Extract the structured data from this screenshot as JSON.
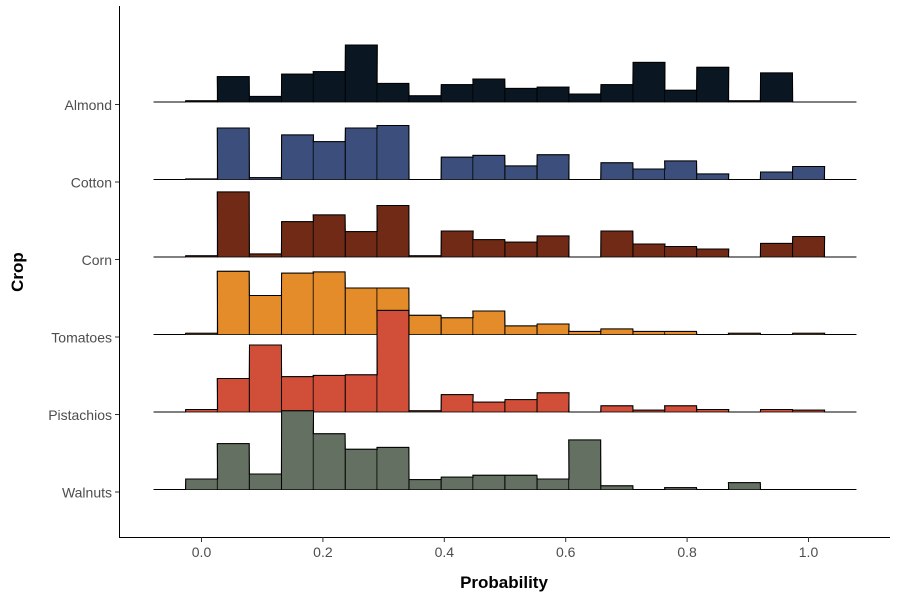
{
  "chart_data": {
    "type": "ridgeline-histogram",
    "xlabel": "Probability",
    "ylabel": "Crop",
    "xlim": [
      -0.14,
      1.13
    ],
    "x_ticks": [
      "0.0",
      "0.2",
      "0.4",
      "0.6",
      "0.8",
      "1.0"
    ],
    "bin_width": 0.0526,
    "bin_starts": [
      -0.079,
      -0.026,
      0.026,
      0.079,
      0.132,
      0.184,
      0.237,
      0.289,
      0.342,
      0.395,
      0.447,
      0.5,
      0.553,
      0.605,
      0.658,
      0.711,
      0.763,
      0.816,
      0.868,
      0.921,
      0.974,
      1.026
    ],
    "grid": false,
    "legend": "none",
    "series": [
      {
        "name": "Almond",
        "color": "#0a1722",
        "values": [
          0.0,
          0.02,
          0.41,
          0.09,
          0.45,
          0.49,
          0.92,
          0.3,
          0.1,
          0.28,
          0.37,
          0.22,
          0.24,
          0.13,
          0.28,
          0.64,
          0.19,
          0.56,
          0.02,
          0.47,
          0.0,
          0.0
        ]
      },
      {
        "name": "Cotton",
        "color": "#3c4f7c",
        "values": [
          0.0,
          0.01,
          0.83,
          0.03,
          0.72,
          0.61,
          0.83,
          0.87,
          0.0,
          0.36,
          0.39,
          0.22,
          0.4,
          0.0,
          0.27,
          0.17,
          0.3,
          0.09,
          0.0,
          0.12,
          0.21,
          0.0
        ]
      },
      {
        "name": "Corn",
        "color": "#712a16",
        "values": [
          0.0,
          0.02,
          1.05,
          0.05,
          0.57,
          0.68,
          0.41,
          0.83,
          0.02,
          0.42,
          0.28,
          0.24,
          0.34,
          0.0,
          0.42,
          0.21,
          0.17,
          0.13,
          0.0,
          0.22,
          0.33,
          0.0
        ]
      },
      {
        "name": "Tomatoes",
        "color": "#e48c2a",
        "values": [
          0.0,
          0.02,
          1.02,
          0.63,
          0.99,
          1.01,
          0.75,
          0.75,
          0.31,
          0.27,
          0.38,
          0.14,
          0.17,
          0.05,
          0.09,
          0.05,
          0.05,
          0.0,
          0.02,
          0.0,
          0.02,
          0.0
        ]
      },
      {
        "name": "Pistachios",
        "color": "#d14f38",
        "values": [
          0.0,
          0.04,
          0.54,
          1.08,
          0.57,
          0.59,
          0.6,
          1.64,
          0.02,
          0.28,
          0.16,
          0.2,
          0.31,
          0.0,
          0.1,
          0.03,
          0.1,
          0.04,
          0.0,
          0.04,
          0.03,
          0.0
        ]
      },
      {
        "name": "Walnuts",
        "color": "#647061",
        "values": [
          0.0,
          0.17,
          0.74,
          0.25,
          1.27,
          0.9,
          0.65,
          0.68,
          0.16,
          0.2,
          0.23,
          0.23,
          0.17,
          0.8,
          0.06,
          0.0,
          0.03,
          0.0,
          0.11,
          0.0,
          0.0,
          0.0
        ]
      }
    ]
  }
}
